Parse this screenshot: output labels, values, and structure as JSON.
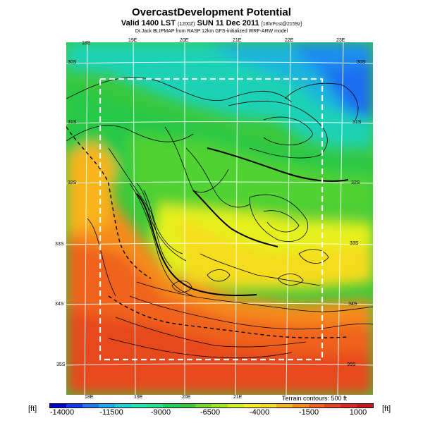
{
  "header": {
    "title": "OvercastDevelopment Potential",
    "valid_main": "Valid 1400 LST",
    "valid_small": "(1200Z)",
    "valid_date": "SUN 11 Dec 2011",
    "valid_tail": "[18hrFcst@2159z]",
    "credit": "Dr.Jack BLIPMAP from RASP 12km GFS-initialized WRF-ARW model"
  },
  "map": {
    "lon_top": [
      "18E",
      "19E",
      "20E",
      "21E",
      "22E",
      "23E"
    ],
    "lon_bottom": [
      "18E",
      "19E",
      "20E",
      "21E"
    ],
    "lat_left": [
      "30S",
      "31S",
      "32S",
      "33S",
      "34S",
      "35S"
    ],
    "lat_right": [
      "30S",
      "31S",
      "32S",
      "33S",
      "34S",
      "35S"
    ],
    "terrain_note": "Terrain contours: 500 ft"
  },
  "colorbar": {
    "unit_left": "[ft]",
    "unit_right": "[ft]",
    "ticks": [
      "-14000",
      "-11500",
      "-9000",
      "-6500",
      "-4000",
      "-1500",
      "1000"
    ],
    "colors": [
      "#0000c8",
      "#0a3cf0",
      "#1e78f0",
      "#1eaaf0",
      "#1ed2dc",
      "#1ee6b4",
      "#1ee68c",
      "#1ed25a",
      "#3cc83c",
      "#6edc28",
      "#a0e61e",
      "#d2f01e",
      "#f5f01e",
      "#fadc1e",
      "#fab41e",
      "#f58c1e",
      "#f0641e",
      "#e6461e",
      "#dc281e",
      "#c8141e"
    ]
  }
}
